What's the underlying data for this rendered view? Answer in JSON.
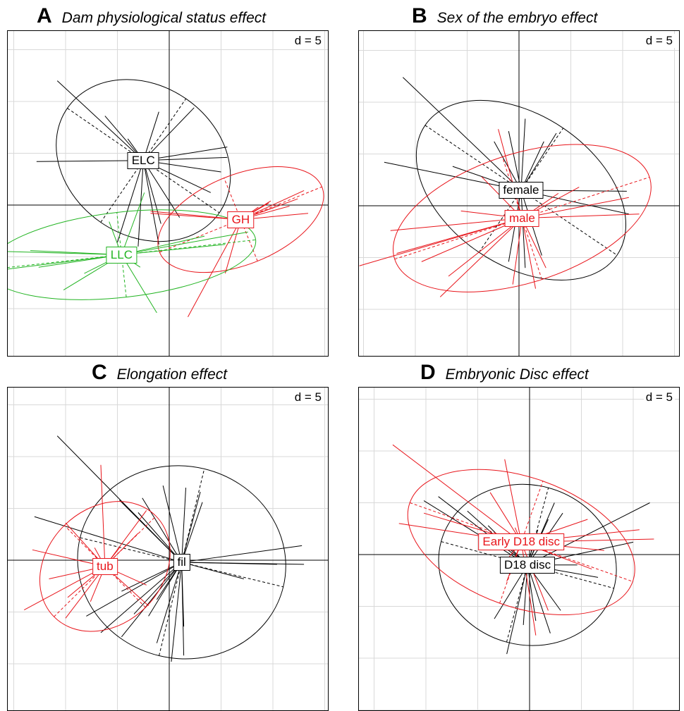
{
  "panels": [
    {
      "letter": "A",
      "subtitle": "Dam physiological status effect",
      "d_label": "d = 5",
      "groups": [
        {
          "name": "ELC",
          "color": "#000000"
        },
        {
          "name": "GH",
          "color": "#e8141a"
        },
        {
          "name": "LLC",
          "color": "#22b422"
        }
      ]
    },
    {
      "letter": "B",
      "subtitle": "Sex of the embryo effect",
      "d_label": "d = 5",
      "groups": [
        {
          "name": "female",
          "color": "#000000"
        },
        {
          "name": "male",
          "color": "#e8141a"
        }
      ]
    },
    {
      "letter": "C",
      "subtitle": "Elongation effect",
      "d_label": "d = 5",
      "groups": [
        {
          "name": "fil",
          "color": "#000000"
        },
        {
          "name": "tub",
          "color": "#e8141a"
        }
      ]
    },
    {
      "letter": "D",
      "subtitle": "Embryonic Disc effect",
      "d_label": "d = 5",
      "groups": [
        {
          "name": "D18 disc",
          "color": "#000000"
        },
        {
          "name": "Early D18 disc",
          "color": "#e8141a"
        }
      ]
    }
  ],
  "chart_data": [
    {
      "type": "scatter",
      "title": "Dam physiological status effect",
      "grid": true,
      "scale_label": "d = 5",
      "groups": [
        {
          "name": "ELC",
          "centroid": [
            -2.5,
            4.3
          ],
          "points": [
            [
              -10.8,
              12.0
            ],
            [
              -6.2,
              8.6
            ],
            [
              -12.8,
              4.2
            ],
            [
              -4.0,
              6.4
            ],
            [
              -1.0,
              9.0
            ],
            [
              2.4,
              9.4
            ],
            [
              5.6,
              5.6
            ],
            [
              5.6,
              4.6
            ],
            [
              5.0,
              3.2
            ],
            [
              4.0,
              1.2
            ],
            [
              1.0,
              -1.2
            ],
            [
              -0.8,
              -1.8
            ],
            [
              -5.0,
              -3.6
            ],
            [
              -3.0,
              -4.0
            ],
            [
              -1.0,
              -3.8
            ]
          ]
        },
        {
          "name": "GH",
          "centroid": [
            6.9,
            -1.4
          ],
          "points": [
            [
              13.0,
              1.4
            ],
            [
              12.4,
              0.6
            ],
            [
              10.2,
              -0.2
            ],
            [
              13.4,
              -0.8
            ],
            [
              9.8,
              0.4
            ],
            [
              -1.8,
              -0.8
            ],
            [
              -1.8,
              -0.6
            ],
            [
              1.8,
              -10.8
            ],
            [
              5.4,
              -6.6
            ],
            [
              9.6,
              0.2
            ],
            [
              11.6,
              -0.1
            ],
            [
              8.6,
              -0.2
            ]
          ]
        },
        {
          "name": "LLC",
          "centroid": [
            -4.6,
            -4.8
          ],
          "points": [
            [
              -20.5,
              -6.8
            ],
            [
              -18.6,
              -4.4
            ],
            [
              -13.4,
              -4.4
            ],
            [
              -12.6,
              -6.0
            ],
            [
              -10.2,
              -8.2
            ],
            [
              -8.2,
              -6.6
            ],
            [
              -5.8,
              -1.6
            ],
            [
              -2.4,
              1.2
            ],
            [
              -2.8,
              -6.0
            ],
            [
              -1.2,
              -10.4
            ],
            [
              3.4,
              -3.0
            ],
            [
              5.4,
              -3.8
            ],
            [
              7.6,
              -2.6
            ]
          ]
        }
      ]
    },
    {
      "type": "scatter",
      "title": "Sex of the embryo effect",
      "grid": true,
      "scale_label": "d = 5",
      "groups": [
        {
          "name": "female",
          "centroid": [
            0.2,
            1.5
          ],
          "points": [
            [
              -11.2,
              12.4
            ],
            [
              -13.0,
              4.2
            ],
            [
              -6.4,
              3.8
            ],
            [
              -2.4,
              6.2
            ],
            [
              -1.0,
              7.2
            ],
            [
              0.6,
              8.4
            ],
            [
              3.6,
              7.0
            ],
            [
              2.4,
              6.2
            ],
            [
              10.4,
              1.4
            ],
            [
              10.6,
              -0.8
            ],
            [
              2.2,
              -4.8
            ],
            [
              0.6,
              -6.0
            ],
            [
              -1.0,
              -5.4
            ]
          ]
        },
        {
          "name": "male",
          "centroid": [
            0.3,
            -1.2
          ],
          "points": [
            [
              -15.4,
              -5.8
            ],
            [
              -12.4,
              -2.4
            ],
            [
              -11.8,
              -4.6
            ],
            [
              -9.4,
              -5.4
            ],
            [
              -7.6,
              -8.8
            ],
            [
              -6.8,
              -6.8
            ],
            [
              -3.6,
              2.8
            ],
            [
              -2.0,
              7.4
            ],
            [
              -0.6,
              -7.6
            ],
            [
              1.6,
              -8.0
            ],
            [
              2.6,
              -6.0
            ],
            [
              3.8,
              1.2
            ],
            [
              5.8,
              1.8
            ],
            [
              10.6,
              0.8
            ],
            [
              11.6,
              -0.8
            ],
            [
              -5.6,
              -0.5
            ]
          ]
        }
      ]
    },
    {
      "type": "scatter",
      "title": "Elongation effect",
      "grid": true,
      "scale_label": "d = 5",
      "groups": [
        {
          "name": "fil",
          "centroid": [
            1.2,
            -0.2
          ],
          "points": [
            [
              -10.8,
              12.0
            ],
            [
              -13.0,
              4.2
            ],
            [
              -4.8,
              5.8
            ],
            [
              -3.0,
              4.6
            ],
            [
              -2.6,
              6.0
            ],
            [
              -0.6,
              7.2
            ],
            [
              1.6,
              7.0
            ],
            [
              3.0,
              6.6
            ],
            [
              3.2,
              5.6
            ],
            [
              12.8,
              1.4
            ],
            [
              13.0,
              -0.4
            ],
            [
              10.4,
              -0.4
            ],
            [
              7.2,
              -1.8
            ],
            [
              -8.0,
              -5.4
            ],
            [
              -6.6,
              -7.0
            ],
            [
              -4.6,
              -7.4
            ],
            [
              -3.4,
              -5.2
            ],
            [
              -1.2,
              -3.8
            ],
            [
              0.2,
              -9.8
            ],
            [
              1.4,
              -9.2
            ],
            [
              1.4,
              -6.4
            ],
            [
              -4.6,
              -3.0
            ],
            [
              -1.2,
              -8.0
            ],
            [
              -2.0,
              -5.4
            ]
          ]
        },
        {
          "name": "tub",
          "centroid": [
            -6.2,
            -0.6
          ],
          "points": [
            [
              -6.6,
              9.2
            ],
            [
              -10.0,
              3.6
            ],
            [
              -13.2,
              1.0
            ],
            [
              -7.2,
              1.2
            ],
            [
              -3.0,
              2.6
            ],
            [
              -2.2,
              4.8
            ],
            [
              -2.2,
              -2.4
            ],
            [
              -2.0,
              -4.4
            ],
            [
              -9.8,
              -3.6
            ],
            [
              -14.0,
              -4.8
            ],
            [
              -10.0,
              -5.6
            ],
            [
              -7.6,
              -4.0
            ],
            [
              -11.6,
              -1.8
            ],
            [
              -4.8,
              1.2
            ]
          ]
        }
      ]
    },
    {
      "type": "scatter",
      "title": "Embryonic Disc effect",
      "grid": true,
      "scale_label": "d = 5",
      "groups": [
        {
          "name": "D18 disc",
          "centroid": [
            -0.2,
            -1.0
          ],
          "points": [
            [
              -10.2,
              5.2
            ],
            [
              -8.8,
              5.6
            ],
            [
              -6.0,
              4.2
            ],
            [
              -4.0,
              2.8
            ],
            [
              2.4,
              5.0
            ],
            [
              3.2,
              4.0
            ],
            [
              1.8,
              3.4
            ],
            [
              0.8,
              2.4
            ],
            [
              11.6,
              5.0
            ],
            [
              10.0,
              1.2
            ],
            [
              -3.4,
              -6.2
            ],
            [
              -2.2,
              -9.6
            ],
            [
              -0.6,
              -6.8
            ],
            [
              0.6,
              -6.4
            ],
            [
              2.0,
              -7.6
            ],
            [
              3.0,
              -5.4
            ],
            [
              4.6,
              -1.0
            ],
            [
              6.6,
              -2.2
            ]
          ]
        },
        {
          "name": "Early D18 disc",
          "centroid": [
            -0.8,
            1.2
          ],
          "points": [
            [
              -13.2,
              10.6
            ],
            [
              -12.6,
              3.0
            ],
            [
              -10.2,
              4.0
            ],
            [
              -2.4,
              9.2
            ],
            [
              -3.8,
              6.0
            ],
            [
              -1.4,
              2.6
            ],
            [
              -2.6,
              -1.0
            ],
            [
              -2.2,
              -2.6
            ],
            [
              5.6,
              3.4
            ],
            [
              10.6,
              2.4
            ],
            [
              12.0,
              1.5
            ],
            [
              7.2,
              0.4
            ],
            [
              6.0,
              -1.4
            ],
            [
              0.6,
              -7.8
            ],
            [
              1.8,
              -5.4
            ],
            [
              -1.6,
              -0.8
            ]
          ]
        }
      ]
    }
  ]
}
